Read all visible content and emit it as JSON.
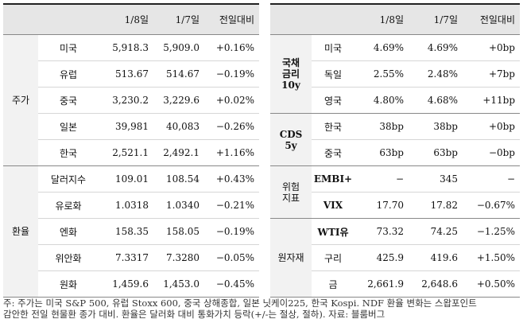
{
  "left_table": {
    "headers": [
      "",
      "",
      "1/8일",
      "1/7일",
      "전일대비"
    ],
    "groups": [
      {
        "label": "주가",
        "rows": [
          {
            "name": "미국",
            "d1": "5,918.3",
            "d2": "5,909.0",
            "chg": "+0.16%"
          },
          {
            "name": "유럽",
            "d1": "513.67",
            "d2": "514.67",
            "chg": "−0.19%"
          },
          {
            "name": "중국",
            "d1": "3,230.2",
            "d2": "3,229.6",
            "chg": "+0.02%"
          },
          {
            "name": "일본",
            "d1": "39,981",
            "d2": "40,083",
            "chg": "−0.26%"
          },
          {
            "name": "한국",
            "d1": "2,521.1",
            "d2": "2,492.1",
            "chg": "+1.16%"
          }
        ]
      },
      {
        "label": "환율",
        "rows": [
          {
            "name": "달러지수",
            "d1": "109.01",
            "d2": "108.54",
            "chg": "+0.43%"
          },
          {
            "name": "유로화",
            "d1": "1.0318",
            "d2": "1.0340",
            "chg": "−0.21%"
          },
          {
            "name": "엔화",
            "d1": "158.35",
            "d2": "158.05",
            "chg": "−0.19%"
          },
          {
            "name": "위안화",
            "d1": "7.3317",
            "d2": "7.3280",
            "chg": "−0.05%"
          },
          {
            "name": "원화",
            "d1": "1,459.6",
            "d2": "1,453.0",
            "chg": "−0.45%"
          }
        ]
      }
    ]
  },
  "right_table": {
    "headers": [
      "",
      "",
      "1/8일",
      "1/7일",
      "전일대비"
    ],
    "groups": [
      {
        "label": "국채\n금리\n10y",
        "rows": [
          {
            "name": "미국",
            "d1": "4.69%",
            "d2": "4.69%",
            "chg": "+0bp"
          },
          {
            "name": "독일",
            "d1": "2.55%",
            "d2": "2.48%",
            "chg": "+7bp"
          },
          {
            "name": "영국",
            "d1": "4.80%",
            "d2": "4.68%",
            "chg": "+11bp"
          }
        ]
      },
      {
        "label": "CDS\n5y",
        "rows": [
          {
            "name": "한국",
            "d1": "38bp",
            "d2": "38bp",
            "chg": "+0bp"
          },
          {
            "name": "중국",
            "d1": "63bp",
            "d2": "63bp",
            "chg": "−0bp"
          }
        ]
      },
      {
        "label": "위험\n지표",
        "rows": [
          {
            "name": "EMBI+",
            "d1": "−",
            "d2": "345",
            "chg": "−"
          },
          {
            "name": "VIX",
            "d1": "17.70",
            "d2": "17.82",
            "chg": "−0.67%"
          }
        ]
      },
      {
        "label": "원자재",
        "rows": [
          {
            "name": "WTI유",
            "d1": "73.32",
            "d2": "74.25",
            "chg": "−1.25%"
          },
          {
            "name": "구리",
            "d1": "425.9",
            "d2": "419.6",
            "chg": "+1.50%"
          },
          {
            "name": "금",
            "d1": "2,661.9",
            "d2": "2,648.6",
            "chg": "+0.50%"
          }
        ]
      }
    ]
  },
  "footnote": {
    "line1": "주: 주가는 미국 S&P 500, 유럽 Stoxx 600, 중국 상해종합, 일본 닛케이225, 한국 Kospi. NDF 환율 변화는 스왑포인트",
    "line2": "감안한 전일 현물환 종가 대비. 환율은 달러화 대비 통화가치 등락(+/-는 절상, 절하). 자료: 블룸버그"
  }
}
